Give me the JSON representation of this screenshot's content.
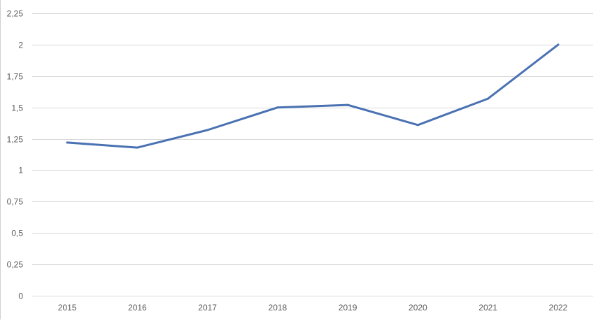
{
  "chart_data": {
    "type": "line",
    "title": "",
    "xlabel": "",
    "ylabel": "",
    "categories": [
      "2015",
      "2016",
      "2017",
      "2018",
      "2019",
      "2020",
      "2021",
      "2022"
    ],
    "series": [
      {
        "values": [
          1.22,
          1.18,
          1.32,
          1.5,
          1.52,
          1.36,
          1.57,
          2.0
        ],
        "color": "#4a72b2"
      }
    ],
    "ylim": [
      0,
      2.25
    ],
    "yticks": [
      0,
      0.25,
      0.5,
      0.75,
      1,
      1.25,
      1.5,
      1.75,
      2,
      2.25
    ],
    "ytick_labels": [
      "0",
      "0,25",
      "0,5",
      "0,75",
      "1",
      "1,25",
      "1,5",
      "1,75",
      "2",
      "2,25"
    ],
    "grid": true,
    "gridline_color": "#d9d9d9",
    "legend": "none"
  }
}
